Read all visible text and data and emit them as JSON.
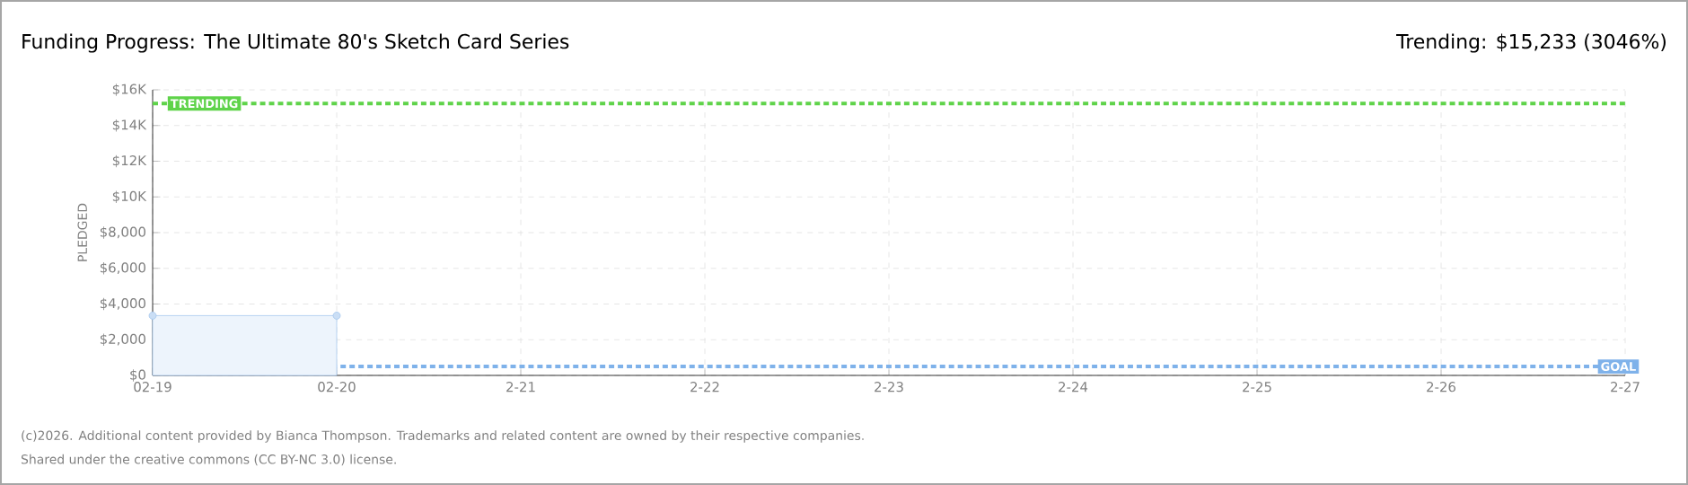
{
  "chart_data": {
    "type": "area",
    "title": "Funding Progress: The Ultimate 80's Sketch Card Series",
    "subtitle": "Trending: $15,233 (3046%)",
    "ylabel": "PLEDGED",
    "categories": [
      "02-19",
      "02-20",
      "2-21",
      "2-22",
      "2-23",
      "2-24",
      "2-25",
      "2-26",
      "2-27"
    ],
    "series": [
      {
        "color": "#a6c8ee",
        "values": [
          3350,
          3350,
          null,
          null,
          null,
          null,
          null,
          null,
          null
        ]
      }
    ],
    "ylim": [
      0,
      16000
    ],
    "yticks": [
      {
        "value": 0,
        "label": "$0"
      },
      {
        "value": 2000,
        "label": "$2,000"
      },
      {
        "value": 4000,
        "label": "$4,000"
      },
      {
        "value": 6000,
        "label": "$6,000"
      },
      {
        "value": 8000,
        "label": "$8,000"
      },
      {
        "value": 10000,
        "label": "$10K"
      },
      {
        "value": 12000,
        "label": "$12K"
      },
      {
        "value": 14000,
        "label": "$14K"
      },
      {
        "value": 16000,
        "label": "$16K"
      }
    ],
    "ref_lines": [
      {
        "axis": "y",
        "value": 15233,
        "label": "TRENDING",
        "color": "#5fd34a",
        "line_style": "dashed"
      },
      {
        "axis": "y",
        "value": 500,
        "label": "GOAL",
        "color": "#7fb2ea",
        "line_style": "dashed"
      }
    ],
    "grid": true,
    "marker": "circle",
    "annotations": [
      "(c)2026. Additional content provided by Bianca Thompson. Trademarks and related content are owned by their respective companies.",
      "Shared under the creative commons (CC BY-NC 3.0) license."
    ]
  }
}
